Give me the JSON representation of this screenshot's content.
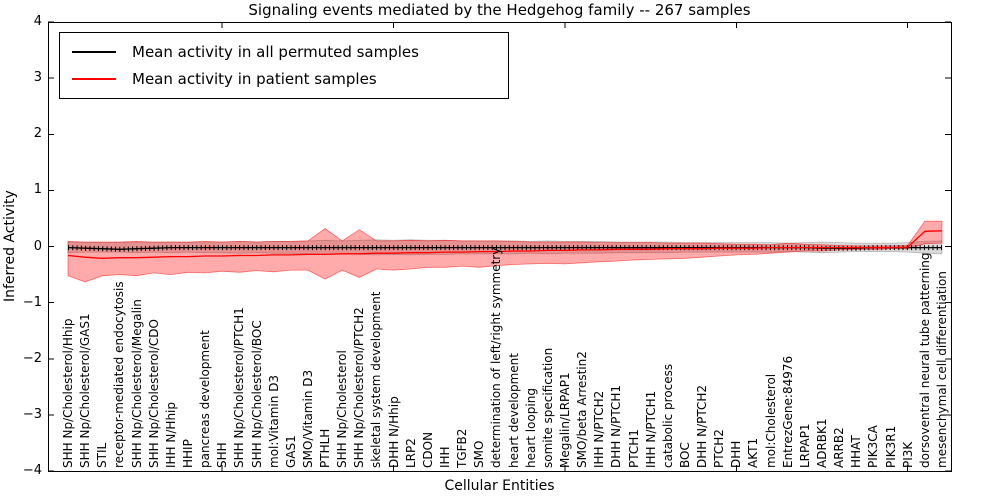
{
  "figure": {
    "title": "Signaling events mediated by the Hedgehog family -- 267 samples",
    "xlabel": "Cellular Entities",
    "ylabel": "Inferred Activity"
  },
  "legend": {
    "entries": [
      {
        "label": "Mean activity in all permuted samples",
        "color": "#000000"
      },
      {
        "label": "Mean activity in patient samples",
        "color": "#ff0000"
      }
    ]
  },
  "axes": {
    "ylim": [
      -4,
      4
    ],
    "ytick_values": [
      4,
      3,
      2,
      1,
      0,
      -1,
      -2,
      -3,
      -4
    ],
    "ytick_labels": [
      "4",
      "3",
      "2",
      "1",
      "0",
      "−1",
      "−2",
      "−3",
      "−4"
    ],
    "xtick_values": [
      10,
      20,
      30,
      40,
      50
    ]
  },
  "chart_data": {
    "type": "line",
    "title": "Signaling events mediated by the Hedgehog family -- 267 samples",
    "xlabel": "Cellular Entities",
    "ylabel": "Inferred Activity",
    "ylim": [
      -4,
      4
    ],
    "grid": false,
    "legend_position": "upper left",
    "categories": [
      "SHH Np/Cholesterol/Hhip",
      "SHH Np/Cholesterol/GAS1",
      "STIL",
      "receptor-mediated endocytosis",
      "SHH Np/Cholesterol/Megalin",
      "SHH Np/Cholesterol/CDO",
      "IHH N/Hhip",
      "HHIP",
      "pancreas development",
      "SHH",
      "SHH Np/Cholesterol/PTCH1",
      "SHH Np/Cholesterol/BOC",
      "mol:Vitamin D3",
      "GAS1",
      "SMO/Vitamin D3",
      "PTHLH",
      "SHH Np/Cholesterol",
      "SHH Np/Cholesterol/PTCH2",
      "skeletal system development",
      "DHH N/Hhip",
      "LRP2",
      "CDON",
      "IHH",
      "TGFB2",
      "SMO",
      "determination of left/right symmetry",
      "heart development",
      "heart looping",
      "somite specification",
      "Megalin/LRPAP1",
      "SMO/beta Arrestin2",
      "IHH N/PTCH2",
      "DHH N/PTCH1",
      "PTCH1",
      "IHH N/PTCH1",
      "catabolic process",
      "BOC",
      "DHH N/PTCH2",
      "PTCH2",
      "DHH",
      "AKT1",
      "mol:Cholesterol",
      "EntrezGene:84976",
      "LRPAP1",
      "ADRBK1",
      "ARRB2",
      "HHAT",
      "PIK3CA",
      "PIK3R1",
      "PI3K",
      "dorsoventral neural tube patterning",
      "mesenchymal cell differentiation"
    ],
    "series": [
      {
        "name": "Mean activity in all permuted samples",
        "color": "#000000",
        "style": "line-with-tick-markers",
        "values": [
          -0.02,
          -0.03,
          -0.04,
          -0.05,
          -0.04,
          -0.03,
          -0.02,
          -0.02,
          -0.02,
          -0.02,
          -0.02,
          -0.02,
          -0.02,
          -0.02,
          -0.02,
          -0.02,
          -0.02,
          -0.02,
          -0.02,
          -0.02,
          -0.02,
          -0.02,
          -0.02,
          -0.02,
          -0.02,
          -0.02,
          -0.02,
          -0.02,
          -0.02,
          -0.02,
          -0.02,
          -0.02,
          -0.02,
          -0.02,
          -0.02,
          -0.02,
          -0.02,
          -0.02,
          -0.02,
          -0.02,
          -0.02,
          -0.02,
          -0.02,
          -0.02,
          -0.03,
          -0.03,
          -0.03,
          -0.02,
          -0.02,
          -0.02,
          -0.02,
          -0.02
        ]
      },
      {
        "name": "Mean activity in patient samples",
        "color": "#ff0000",
        "style": "line",
        "values": [
          -0.16,
          -0.19,
          -0.21,
          -0.2,
          -0.2,
          -0.19,
          -0.18,
          -0.18,
          -0.17,
          -0.17,
          -0.16,
          -0.16,
          -0.15,
          -0.15,
          -0.14,
          -0.14,
          -0.13,
          -0.13,
          -0.12,
          -0.12,
          -0.11,
          -0.11,
          -0.1,
          -0.1,
          -0.09,
          -0.09,
          -0.08,
          -0.08,
          -0.07,
          -0.07,
          -0.06,
          -0.06,
          -0.05,
          -0.05,
          -0.05,
          -0.04,
          -0.04,
          -0.04,
          -0.03,
          -0.03,
          -0.03,
          -0.02,
          -0.02,
          -0.02,
          -0.02,
          -0.02,
          -0.02,
          -0.02,
          -0.02,
          -0.01,
          0.27,
          0.28
        ]
      }
    ],
    "bands": [
      {
        "name": "permuted samples range",
        "color": "#808080",
        "opacity": 0.3,
        "upper": [
          0.08,
          0.07,
          0.07,
          0.07,
          0.08,
          0.07,
          0.08,
          0.07,
          0.08,
          0.08,
          0.09,
          0.08,
          0.09,
          0.09,
          0.1,
          0.11,
          0.1,
          0.11,
          0.12,
          0.11,
          0.12,
          0.11,
          0.11,
          0.1,
          0.1,
          0.1,
          0.1,
          0.09,
          0.1,
          0.09,
          0.09,
          0.09,
          0.08,
          0.08,
          0.08,
          0.08,
          0.07,
          0.07,
          0.07,
          0.07,
          0.07,
          0.07,
          0.06,
          0.07,
          0.08,
          0.07,
          0.06,
          0.06,
          0.06,
          0.07,
          0.09,
          0.1
        ],
        "lower": [
          -0.11,
          -0.1,
          -0.1,
          -0.1,
          -0.11,
          -0.1,
          -0.11,
          -0.1,
          -0.11,
          -0.11,
          -0.12,
          -0.11,
          -0.12,
          -0.12,
          -0.13,
          -0.14,
          -0.13,
          -0.14,
          -0.15,
          -0.14,
          -0.15,
          -0.14,
          -0.14,
          -0.13,
          -0.13,
          -0.13,
          -0.13,
          -0.12,
          -0.13,
          -0.12,
          -0.12,
          -0.12,
          -0.11,
          -0.11,
          -0.11,
          -0.11,
          -0.1,
          -0.1,
          -0.1,
          -0.1,
          -0.1,
          -0.1,
          -0.09,
          -0.1,
          -0.11,
          -0.1,
          -0.09,
          -0.09,
          -0.09,
          -0.1,
          -0.12,
          -0.13
        ]
      },
      {
        "name": "patient samples range",
        "color": "#ff0000",
        "opacity": 0.33,
        "upper": [
          0.09,
          0.08,
          0.08,
          0.08,
          0.09,
          0.08,
          0.08,
          0.08,
          0.09,
          0.08,
          0.09,
          0.08,
          0.09,
          0.09,
          0.1,
          0.32,
          0.1,
          0.3,
          0.1,
          0.1,
          0.11,
          0.1,
          0.11,
          0.1,
          0.1,
          0.1,
          0.09,
          0.08,
          0.08,
          0.08,
          0.08,
          0.07,
          0.07,
          0.07,
          0.07,
          0.06,
          0.06,
          0.06,
          0.05,
          0.04,
          0.04,
          0.03,
          0.06,
          0.04,
          0.03,
          0.02,
          0.01,
          0.01,
          0.01,
          0.02,
          0.45,
          0.45
        ],
        "lower": [
          -0.52,
          -0.63,
          -0.52,
          -0.5,
          -0.52,
          -0.47,
          -0.5,
          -0.46,
          -0.47,
          -0.44,
          -0.46,
          -0.43,
          -0.45,
          -0.42,
          -0.42,
          -0.58,
          -0.42,
          -0.55,
          -0.4,
          -0.42,
          -0.4,
          -0.37,
          -0.37,
          -0.35,
          -0.37,
          -0.34,
          -0.32,
          -0.31,
          -0.3,
          -0.31,
          -0.29,
          -0.27,
          -0.26,
          -0.24,
          -0.23,
          -0.22,
          -0.21,
          -0.19,
          -0.17,
          -0.15,
          -0.14,
          -0.12,
          -0.1,
          -0.08,
          -0.08,
          -0.06,
          -0.05,
          -0.05,
          -0.04,
          -0.04,
          0.05,
          0.06
        ]
      }
    ]
  }
}
